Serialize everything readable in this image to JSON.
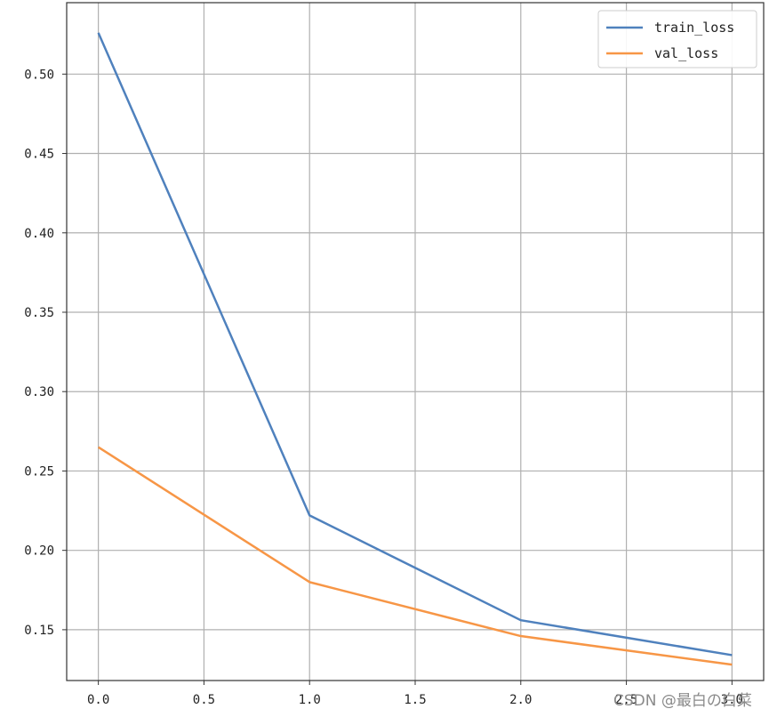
{
  "chart_data": {
    "type": "line",
    "title": "",
    "xlabel": "",
    "ylabel": "",
    "x": [
      0,
      1,
      2,
      3
    ],
    "xlim": [
      -0.15,
      3.15
    ],
    "ylim": [
      0.118,
      0.545
    ],
    "xticks": [
      0.0,
      0.5,
      1.0,
      1.5,
      2.0,
      2.5,
      3.0
    ],
    "xtick_labels": [
      "0.0",
      "0.5",
      "1.0",
      "1.5",
      "2.0",
      "2.5",
      "3.0"
    ],
    "yticks": [
      0.15,
      0.2,
      0.25,
      0.3,
      0.35,
      0.4,
      0.45,
      0.5
    ],
    "ytick_labels": [
      "0.15",
      "0.20",
      "0.25",
      "0.30",
      "0.35",
      "0.40",
      "0.45",
      "0.50"
    ],
    "grid": true,
    "legend_position": "top-right",
    "series": [
      {
        "name": "train_loss",
        "color": "#4f81bd",
        "values": [
          0.526,
          0.222,
          0.156,
          0.134
        ]
      },
      {
        "name": "val_loss",
        "color": "#f79646",
        "values": [
          0.265,
          0.18,
          0.146,
          0.128
        ]
      }
    ]
  },
  "watermark": "CSDN @最白の白菜"
}
